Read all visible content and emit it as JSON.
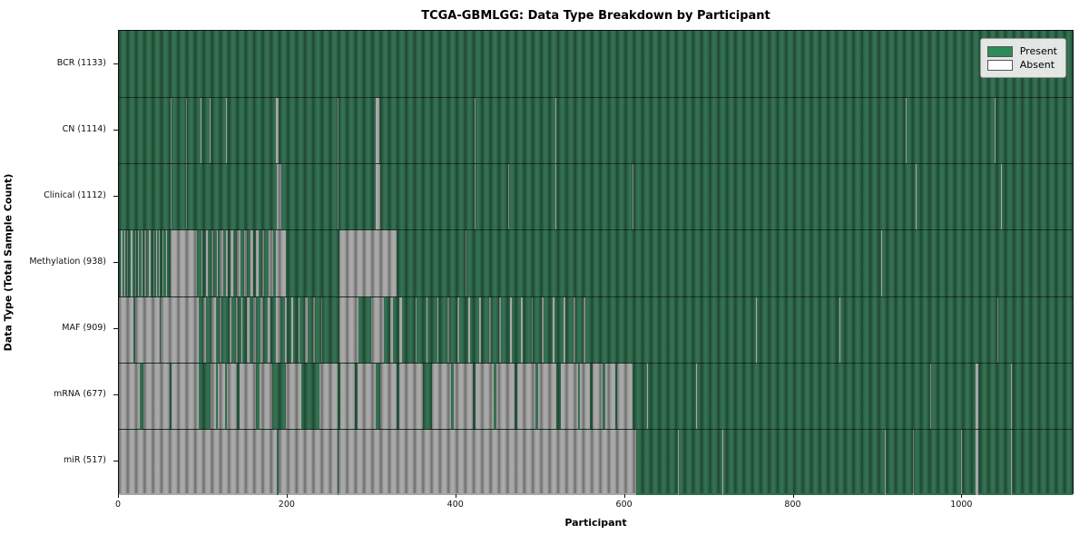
{
  "figure": {
    "title": "TCGA-GBMLGG: Data Type Breakdown by Participant"
  },
  "chart_data": {
    "type": "heatmap",
    "title": "TCGA-GBMLGG: Data Type Breakdown by Participant",
    "xlabel": "Participant",
    "ylabel": "Data Type (Total Sample Count)",
    "x_max": 1133,
    "x_ticks": [
      0,
      200,
      400,
      600,
      800,
      1000
    ],
    "grid": false,
    "legend": {
      "position": "upper right",
      "entries": [
        {
          "label": "Present",
          "color": "#2e8b57"
        },
        {
          "label": "Absent",
          "color": "#ffffff"
        }
      ]
    },
    "colors": {
      "present_fill": "#2f6b4c",
      "absent_fill": "#a6a6a6",
      "axis": "#111111"
    },
    "rows": [
      {
        "data_type": "BCR",
        "total": 1133,
        "label": "BCR (1133)",
        "absent_segments": []
      },
      {
        "data_type": "CN",
        "total": 1114,
        "label": "CN (1114)",
        "absent_segments": [
          [
            61,
            62
          ],
          [
            80,
            81
          ],
          [
            97,
            98
          ],
          [
            108,
            109
          ],
          [
            127,
            128
          ],
          [
            186,
            190
          ],
          [
            260,
            261
          ],
          [
            305,
            309
          ],
          [
            423,
            424
          ],
          [
            519,
            520
          ],
          [
            935,
            936
          ],
          [
            1040,
            1041
          ]
        ]
      },
      {
        "data_type": "Clinical",
        "total": 1112,
        "label": "Clinical (1112)",
        "absent_segments": [
          [
            61,
            62
          ],
          [
            80,
            81
          ],
          [
            188,
            193
          ],
          [
            260,
            261
          ],
          [
            305,
            310
          ],
          [
            423,
            424
          ],
          [
            462,
            463
          ],
          [
            519,
            520
          ],
          [
            610,
            611
          ],
          [
            946,
            947
          ],
          [
            1048,
            1049
          ]
        ]
      },
      {
        "data_type": "Methylation",
        "total": 938,
        "label": "Methylation (938)",
        "absent_segments": [
          [
            2,
            4
          ],
          [
            6,
            8
          ],
          [
            10,
            11
          ],
          [
            14,
            16
          ],
          [
            19,
            20
          ],
          [
            23,
            24
          ],
          [
            27,
            28
          ],
          [
            30,
            32
          ],
          [
            36,
            38
          ],
          [
            41,
            42
          ],
          [
            44,
            45
          ],
          [
            47,
            48
          ],
          [
            52,
            53
          ],
          [
            56,
            57
          ],
          [
            61,
            93
          ],
          [
            98,
            99
          ],
          [
            104,
            106
          ],
          [
            110,
            112
          ],
          [
            116,
            118
          ],
          [
            120,
            124
          ],
          [
            127,
            129
          ],
          [
            133,
            136
          ],
          [
            140,
            145
          ],
          [
            149,
            152
          ],
          [
            156,
            160
          ],
          [
            163,
            166
          ],
          [
            170,
            173
          ],
          [
            178,
            183
          ],
          [
            186,
            198
          ],
          [
            262,
            330
          ],
          [
            412,
            413
          ],
          [
            906,
            907
          ]
        ]
      },
      {
        "data_type": "MAF",
        "total": 909,
        "label": "MAF (909)",
        "absent_segments": [
          [
            0,
            17
          ],
          [
            19,
            48
          ],
          [
            50,
            95
          ],
          [
            100,
            103
          ],
          [
            110,
            115
          ],
          [
            120,
            122
          ],
          [
            131,
            134
          ],
          [
            139,
            141
          ],
          [
            145,
            147
          ],
          [
            152,
            155
          ],
          [
            160,
            163
          ],
          [
            168,
            171
          ],
          [
            177,
            180
          ],
          [
            186,
            192
          ],
          [
            197,
            199
          ],
          [
            205,
            207
          ],
          [
            213,
            215
          ],
          [
            221,
            224
          ],
          [
            231,
            233
          ],
          [
            240,
            242
          ],
          [
            262,
            285
          ],
          [
            300,
            315
          ],
          [
            322,
            326
          ],
          [
            333,
            336
          ],
          [
            352,
            354
          ],
          [
            365,
            367
          ],
          [
            378,
            380
          ],
          [
            390,
            392
          ],
          [
            402,
            404
          ],
          [
            415,
            417
          ],
          [
            428,
            430
          ],
          [
            440,
            442
          ],
          [
            452,
            454
          ],
          [
            465,
            467
          ],
          [
            478,
            480
          ],
          [
            490,
            492
          ],
          [
            502,
            504
          ],
          [
            515,
            517
          ],
          [
            528,
            530
          ],
          [
            540,
            542
          ],
          [
            552,
            554
          ],
          [
            757,
            758
          ],
          [
            856,
            857
          ],
          [
            1044,
            1045
          ]
        ]
      },
      {
        "data_type": "mRNA",
        "total": 677,
        "label": "mRNA (677)",
        "absent_segments": [
          [
            0,
            25
          ],
          [
            29,
            60
          ],
          [
            63,
            95
          ],
          [
            109,
            115
          ],
          [
            118,
            126
          ],
          [
            128,
            140
          ],
          [
            143,
            163
          ],
          [
            167,
            182
          ],
          [
            198,
            217
          ],
          [
            238,
            260
          ],
          [
            263,
            280
          ],
          [
            283,
            305
          ],
          [
            310,
            330
          ],
          [
            333,
            361
          ],
          [
            372,
            395
          ],
          [
            398,
            420
          ],
          [
            424,
            445
          ],
          [
            448,
            470
          ],
          [
            473,
            495
          ],
          [
            498,
            520
          ],
          [
            525,
            545
          ],
          [
            548,
            560
          ],
          [
            563,
            575
          ],
          [
            578,
            590
          ],
          [
            592,
            610
          ],
          [
            627,
            628
          ],
          [
            686,
            687
          ],
          [
            964,
            965
          ],
          [
            1018,
            1021
          ],
          [
            1060,
            1061
          ]
        ]
      },
      {
        "data_type": "miR",
        "total": 517,
        "label": "miR (517)",
        "absent_segments": [
          [
            0,
            188
          ],
          [
            190,
            260
          ],
          [
            261,
            614
          ],
          [
            664,
            665
          ],
          [
            717,
            718
          ],
          [
            910,
            911
          ],
          [
            943,
            944
          ],
          [
            1000,
            1001
          ],
          [
            1018,
            1021
          ],
          [
            1060,
            1061
          ]
        ]
      }
    ]
  }
}
